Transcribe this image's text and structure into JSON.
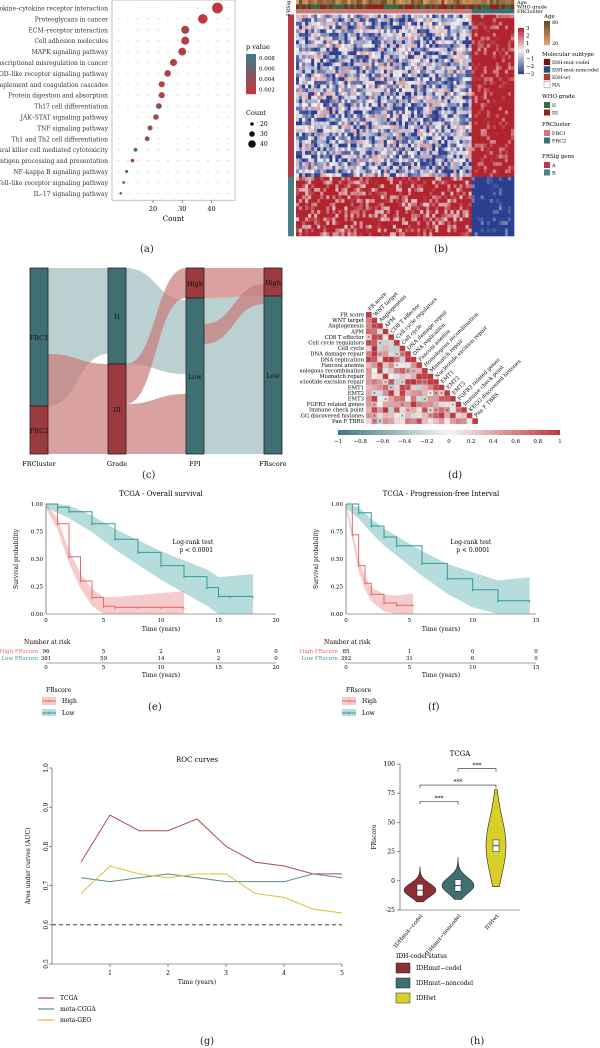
{
  "panel_a": {
    "label": "(a)",
    "pathways": [
      "Cytokine–cytokine receptor interaction",
      "Proteoglycans in cancer",
      "ECM–receptor interaction",
      "Cell adhesion molecules",
      "MAPK signaling pathway",
      "Transcriptional misregulation in cancer",
      "NOD–like receptor signaling pathway",
      "Complement and coagulation cascades",
      "Protein digestion and absorption",
      "Th17 cell differentiation",
      "JAK–STAT signaling pathway",
      "TNF signaling pathway",
      "Th1 and Th2 cell differentiation",
      "Natural killer cell mediated cytotoxicity",
      "Antigen processing and presentation",
      "NF–kappa B signaling pathway",
      "Toll–like receptor signaling pathway",
      "IL–17 signaling pathway"
    ],
    "xlabel": "Count",
    "xticks": [
      "20",
      "30",
      "40"
    ],
    "legend_p_title": "p value",
    "legend_p_ticks": [
      "0.008",
      "0.006",
      "0.004",
      "0.002"
    ],
    "legend_count_title": "Count",
    "legend_count_ticks": [
      "20",
      "30",
      "40"
    ]
  },
  "panel_b": {
    "label": "(b)",
    "row_labels": [
      "Age",
      "WHO grade",
      "FRCluster"
    ],
    "side_label": "FRSig",
    "scale_ticks": [
      "3",
      "2",
      "1",
      "0",
      "−1",
      "−2",
      "−3"
    ],
    "age_title": "Age",
    "age_ticks": [
      "80",
      "20"
    ],
    "subtype_title": "Molecular subtype",
    "subtype_items": [
      "IDH-mut-codel",
      "IDH-mut-noncodel",
      "IDH-wt",
      "NA"
    ],
    "grade_title": "WHO grade",
    "grade_items": [
      "II",
      "III"
    ],
    "cluster_title": "FRCluster",
    "cluster_items": [
      "FRC1",
      "FRC2"
    ],
    "gene_title": "FRSig gene",
    "gene_items": [
      "A",
      "B"
    ]
  },
  "panel_c": {
    "label": "(c)",
    "axes": [
      "FRCluster",
      "Grade",
      "FPI",
      "FRscore"
    ],
    "nodes": [
      "FRC1",
      "FRC2",
      "II",
      "III",
      "High",
      "Low",
      "High",
      "Low"
    ]
  },
  "panel_d": {
    "label": "(d)",
    "rows": [
      "FR score",
      "WNT target",
      "Angiogenesis",
      "APM",
      "CD8 T effector",
      "Cell cycle regulators",
      "Cell cycle",
      "DNA damage repair",
      "DNA replication",
      "Fanconi anemia",
      "Homologous recombination",
      "Mismatch repair",
      "Nucleotide excision repair",
      "EMT1",
      "EMT2",
      "EMT3",
      "FGFR3 related genes",
      "Immune check point",
      "KEGG discovered histones",
      "Pan F TBRS"
    ],
    "scale_ticks": [
      "−1",
      "−0.8",
      "−0.6",
      "−0.4",
      "−0.2",
      "0",
      "0.2",
      "0.4",
      "0.6",
      "0.8",
      "1"
    ]
  },
  "panel_e": {
    "label": "(e)",
    "title": "TCGA - Overall survival",
    "ylabel": "Survival probability",
    "xlabel": "Time (years)",
    "yticks": [
      "1.00",
      "0.75",
      "0.50",
      "0.25",
      "0.00"
    ],
    "xticks": [
      "0",
      "5",
      "10",
      "15",
      "20"
    ],
    "test": "Log-rank test",
    "pval": "p < 0.0001",
    "risk_title": "Number at risk",
    "risk_high_label": "High FRscore",
    "risk_low_label": "Low FRscore",
    "risk_high": [
      "96",
      "5",
      "2",
      "0",
      "0"
    ],
    "risk_low": [
      "381",
      "59",
      "14",
      "2",
      "0"
    ],
    "legend_title": "FRscore",
    "legend_high": "High",
    "legend_low": "Low"
  },
  "panel_f": {
    "label": "(f)",
    "title": "TCGA - Progression-free Interval",
    "ylabel": "Survival probability",
    "xlabel": "Time (years)",
    "yticks": [
      "1.00",
      "0.75",
      "0.50",
      "0.25",
      "0.00"
    ],
    "xticks": [
      "0",
      "5",
      "10",
      "15"
    ],
    "test": "Log-rank test",
    "pval": "p < 0.0001",
    "risk_title": "Number at risk",
    "risk_high_label": "High FRscore",
    "risk_low_label": "Low FRscore",
    "risk_high": [
      "85",
      "1",
      "0",
      "0"
    ],
    "risk_low": [
      "392",
      "31",
      "6",
      "0"
    ],
    "legend_title": "FRscore",
    "legend_high": "High",
    "legend_low": "Low"
  },
  "panel_g": {
    "label": "(g)",
    "title": "ROC curves",
    "ylabel": "Area under curves (AUC)",
    "xlabel": "Time (years)",
    "legend": [
      "TCGA",
      "meta-CGGA",
      "meta-GEO"
    ],
    "colors": [
      "#b04a4a",
      "#5a8a8a",
      "#d4c43a"
    ]
  },
  "panel_h": {
    "label": "(h)",
    "title": "TCGA",
    "ylabel": "FRscore",
    "legend_title": "IDH-codel status",
    "legend": [
      "IDHmut−codel",
      "IDHmut−noncodel",
      "IDHwt"
    ],
    "colors": [
      "#8b2f34",
      "#3f6f73",
      "#d8cf2a"
    ],
    "sig": [
      "***",
      "***",
      "***"
    ]
  },
  "chart_data": [
    {
      "type": "scatter",
      "chart": "a",
      "y": [
        "Cytokine–cytokine receptor interaction",
        "Proteoglycans in cancer",
        "ECM–receptor interaction",
        "Cell adhesion molecules",
        "MAPK signaling pathway",
        "Transcriptional misregulation in cancer",
        "NOD–like receptor signaling pathway",
        "Complement and coagulation cascades",
        "Protein digestion and absorption",
        "Th17 cell differentiation",
        "JAK–STAT signaling pathway",
        "TNF signaling pathway",
        "Th1 and Th2 cell differentiation",
        "Natural killer cell mediated cytotoxicity",
        "Antigen processing and presentation",
        "NF–kappa B signaling pathway",
        "Toll–like receptor signaling pathway",
        "IL–17 signaling pathway"
      ],
      "x": [
        42,
        37,
        31,
        31,
        30,
        27,
        25,
        23,
        23,
        22,
        21,
        19,
        18,
        14,
        13,
        11,
        10,
        9
      ],
      "p": [
        0.001,
        0.001,
        0.002,
        0.002,
        0.002,
        0.002,
        0.002,
        0.002,
        0.002,
        0.003,
        0.003,
        0.003,
        0.004,
        0.008,
        0.003,
        0.007,
        0.007,
        0.006
      ],
      "xlabel": "Count",
      "xlim": [
        6,
        48
      ]
    },
    {
      "type": "line",
      "chart": "e",
      "title": "TCGA - Overall survival",
      "xlim": [
        0,
        20
      ],
      "ylim": [
        0,
        1
      ],
      "series": [
        {
          "name": "High",
          "x": [
            0,
            1,
            2,
            3,
            4,
            5,
            6,
            8,
            10,
            12
          ],
          "y": [
            1.0,
            0.82,
            0.52,
            0.3,
            0.15,
            0.07,
            0.06,
            0.06,
            0.06,
            0.06
          ]
        },
        {
          "name": "Low",
          "x": [
            0,
            1,
            2,
            4,
            6,
            8,
            10,
            12,
            14,
            15,
            16,
            18
          ],
          "y": [
            1.0,
            0.97,
            0.93,
            0.82,
            0.68,
            0.56,
            0.44,
            0.34,
            0.24,
            0.16,
            0.16,
            0.16
          ]
        }
      ]
    },
    {
      "type": "line",
      "chart": "f",
      "title": "TCGA - Progression-free Interval",
      "xlim": [
        0,
        15
      ],
      "ylim": [
        0,
        1
      ],
      "series": [
        {
          "name": "High",
          "x": [
            0,
            0.5,
            1,
            1.5,
            2,
            3,
            4,
            5.3
          ],
          "y": [
            1.0,
            0.72,
            0.44,
            0.28,
            0.18,
            0.1,
            0.08,
            0.08
          ]
        },
        {
          "name": "Low",
          "x": [
            0,
            1,
            2,
            3,
            4,
            6,
            8,
            10,
            12,
            14.5
          ],
          "y": [
            1.0,
            0.92,
            0.8,
            0.7,
            0.62,
            0.46,
            0.32,
            0.22,
            0.12,
            0.12
          ]
        }
      ]
    },
    {
      "type": "line",
      "chart": "g",
      "title": "ROC curves",
      "xlabel": "Time (years)",
      "ylabel": "Area under curves (AUC)",
      "xlim": [
        0,
        5
      ],
      "ylim": [
        0.5,
        1.0
      ],
      "x": [
        0.5,
        1.0,
        1.5,
        2.0,
        2.5,
        3.0,
        3.5,
        4.0,
        4.5,
        5.0
      ],
      "series": [
        {
          "name": "TCGA",
          "values": [
            0.76,
            0.88,
            0.84,
            0.84,
            0.87,
            0.8,
            0.76,
            0.75,
            0.73,
            0.73
          ]
        },
        {
          "name": "meta-CGGA",
          "values": [
            0.72,
            0.71,
            0.72,
            0.73,
            0.72,
            0.71,
            0.71,
            0.71,
            0.73,
            0.72
          ]
        },
        {
          "name": "meta-GEO",
          "values": [
            0.68,
            0.75,
            0.73,
            0.72,
            0.73,
            0.73,
            0.68,
            0.67,
            0.64,
            0.63
          ]
        }
      ]
    },
    {
      "type": "violin",
      "chart": "h",
      "title": "TCGA",
      "ylabel": "FRscore",
      "ylim": [
        -25,
        100
      ],
      "categories": [
        "IDHmut−codel",
        "IDHmut−noncodel",
        "IDHwt"
      ],
      "medians": [
        -8,
        -4,
        30
      ]
    }
  ]
}
